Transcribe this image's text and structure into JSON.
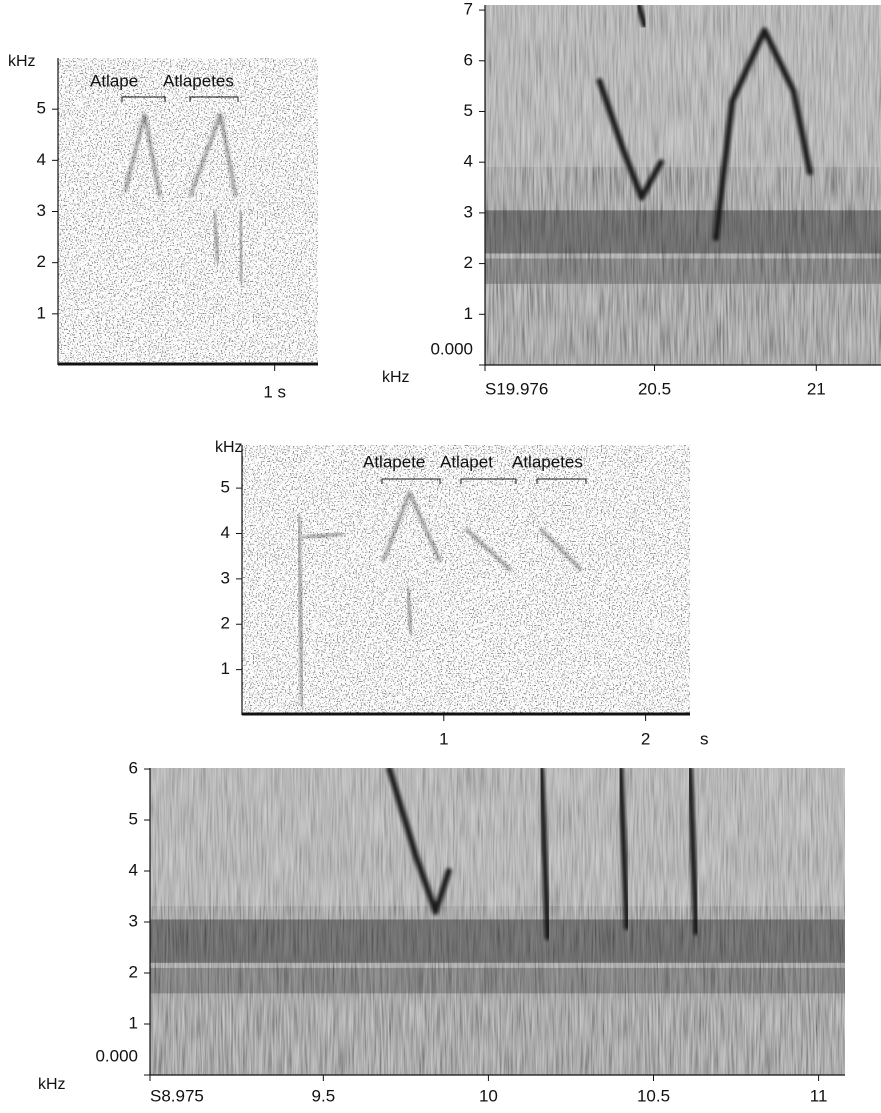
{
  "chart_data": [
    {
      "type": "spectrogram",
      "y_label": "kHz",
      "ylim": [
        0,
        6
      ],
      "yticks": [
        1,
        2,
        3,
        4,
        5
      ],
      "xlim": [
        0,
        1.2
      ],
      "xticks": [
        {
          "value": 1,
          "label": "1 s"
        }
      ],
      "annotations": [
        "Atlape",
        "Atlapetes"
      ]
    },
    {
      "type": "spectrogram",
      "y_label": "kHz",
      "ylim": [
        0,
        7.1
      ],
      "yticks": [
        {
          "value": 0,
          "label": "0.000"
        },
        1,
        2,
        3,
        4,
        5,
        6,
        7
      ],
      "xlim": [
        19.976,
        21.2
      ],
      "xticks": [
        {
          "value": 19.976,
          "label": "S19.976"
        },
        20.5,
        21
      ]
    },
    {
      "type": "spectrogram",
      "y_label": "kHz",
      "x_label": "s",
      "ylim": [
        0,
        5.95
      ],
      "yticks": [
        1,
        2,
        3,
        4,
        5
      ],
      "xlim": [
        0,
        2.22
      ],
      "xticks": [
        1,
        2
      ],
      "annotations": [
        "Atlapete",
        "Atlapet",
        "Atlapetes"
      ]
    },
    {
      "type": "spectrogram",
      "y_label": "kHz",
      "ylim": [
        0,
        6.02
      ],
      "yticks": [
        {
          "value": 0,
          "label": "0.000"
        },
        1,
        2,
        3,
        4,
        5,
        6
      ],
      "xlim": [
        8.975,
        11.08
      ],
      "xticks": [
        {
          "value": 8.975,
          "label": "S8.975"
        },
        9.5,
        10,
        10.5,
        11
      ]
    }
  ]
}
